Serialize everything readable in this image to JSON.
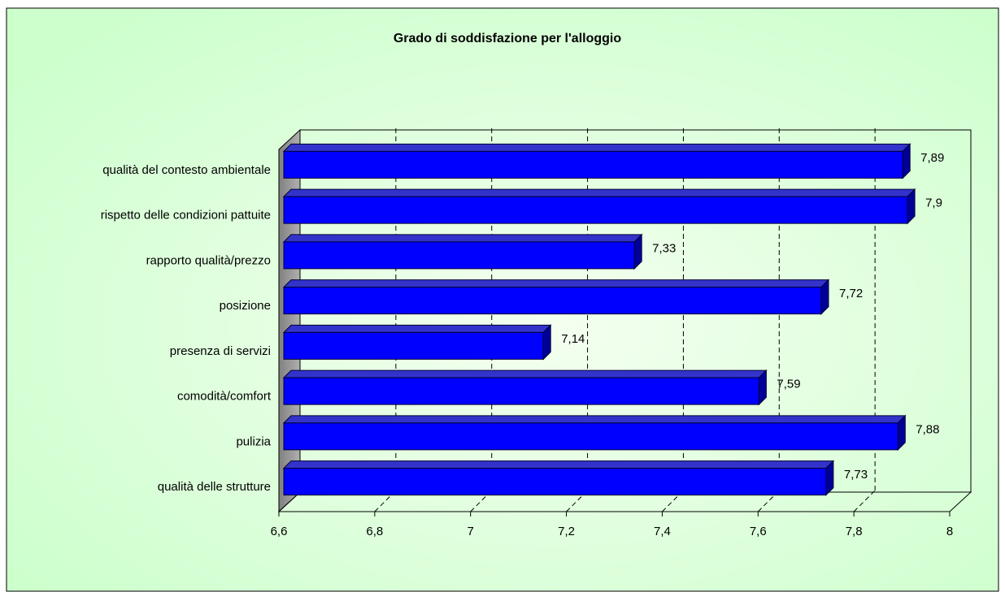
{
  "chart_data": {
    "type": "bar3d_horizontal",
    "title": "Grado di soddisfazione per l'alloggio",
    "categories": [
      "qualità del contesto ambientale",
      "rispetto delle condizioni pattuite",
      "rapporto qualità/prezzo",
      "posizione",
      "presenza di servizi",
      "comodità/comfort",
      "pulizia",
      "qualità delle strutture"
    ],
    "values": [
      7.89,
      7.9,
      7.33,
      7.72,
      7.14,
      7.59,
      7.88,
      7.73
    ],
    "value_labels": [
      "7,89",
      "7,9",
      "7,33",
      "7,72",
      "7,14",
      "7,59",
      "7,88",
      "7,73"
    ],
    "color": "#0000ff",
    "xlim": [
      6.6,
      8
    ],
    "xticks": [
      {
        "value": 6.6,
        "label": "6,6"
      },
      {
        "value": 6.8,
        "label": "6,8"
      },
      7,
      {
        "value": 7.2,
        "label": "7,2"
      },
      {
        "value": 7.4,
        "label": "7,4"
      },
      {
        "value": 7.6,
        "label": "7,6"
      },
      {
        "value": 7.8,
        "label": "7,8"
      },
      8
    ],
    "grid": true
  }
}
